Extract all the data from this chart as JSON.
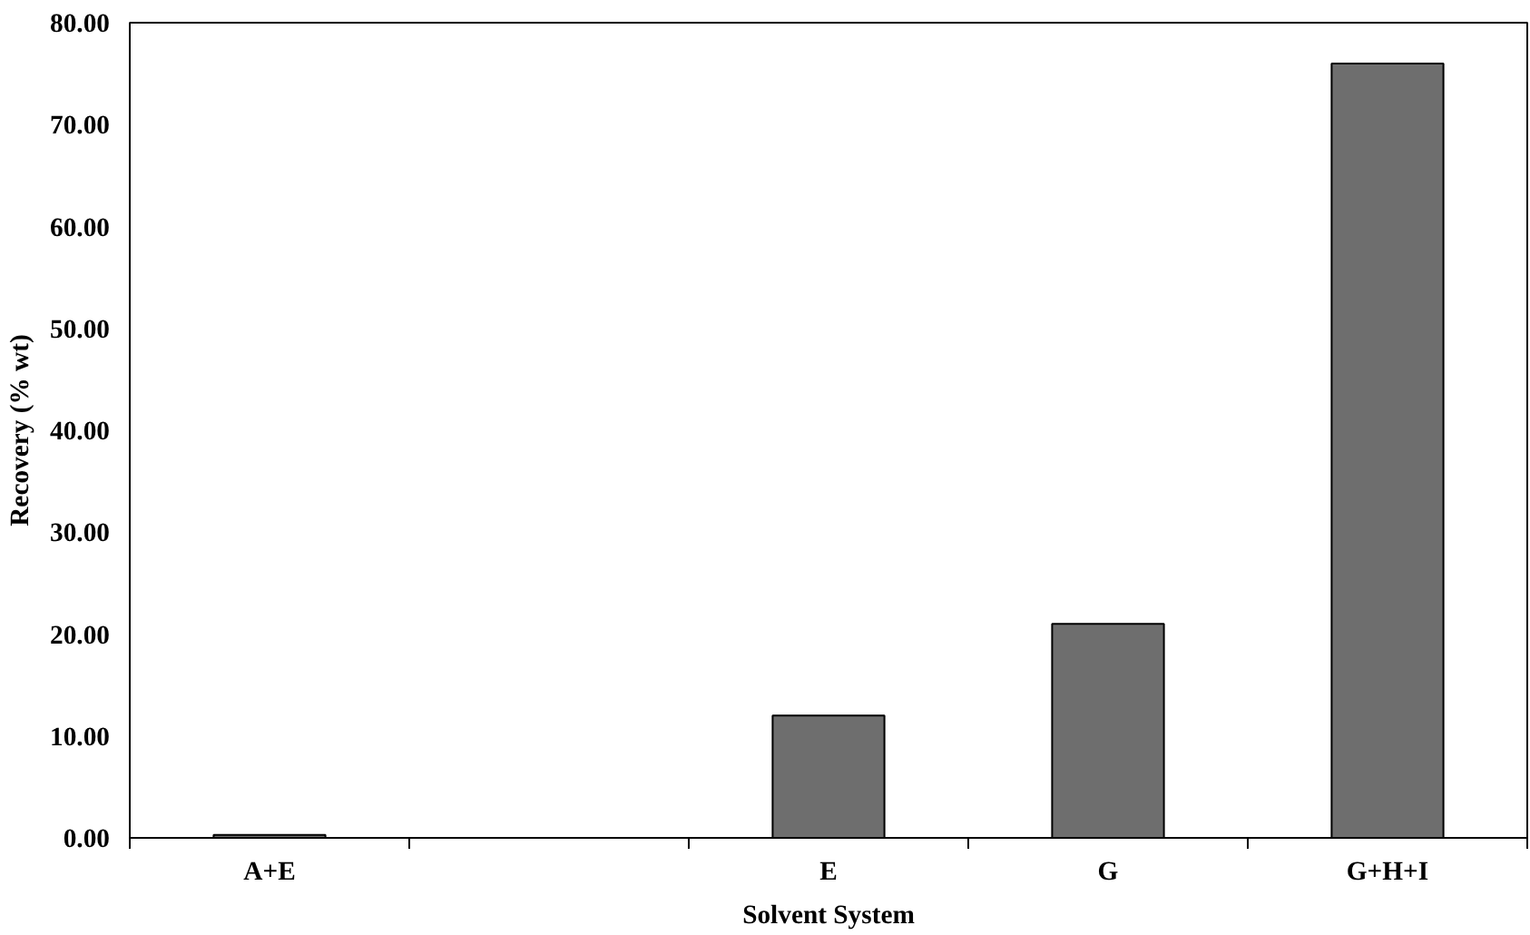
{
  "chart_data": {
    "type": "bar",
    "xlabel": "Solvent System",
    "ylabel": "Recovery (% wt)",
    "categories": [
      "A+E",
      null,
      "E",
      "G",
      "G+H+I"
    ],
    "values": [
      0.3,
      null,
      12,
      21,
      76
    ],
    "color": "#6e6e6e",
    "ylim": [
      0,
      80
    ],
    "yticks": [
      {
        "value": 0,
        "label": "0.00"
      },
      {
        "value": 10,
        "label": "10.00"
      },
      {
        "value": 20,
        "label": "20.00"
      },
      {
        "value": 30,
        "label": "30.00"
      },
      {
        "value": 40,
        "label": "40.00"
      },
      {
        "value": 50,
        "label": "50.00"
      },
      {
        "value": 60,
        "label": "60.00"
      },
      {
        "value": 70,
        "label": "70.00"
      },
      {
        "value": 80,
        "label": "80.00"
      }
    ],
    "grid": false
  }
}
